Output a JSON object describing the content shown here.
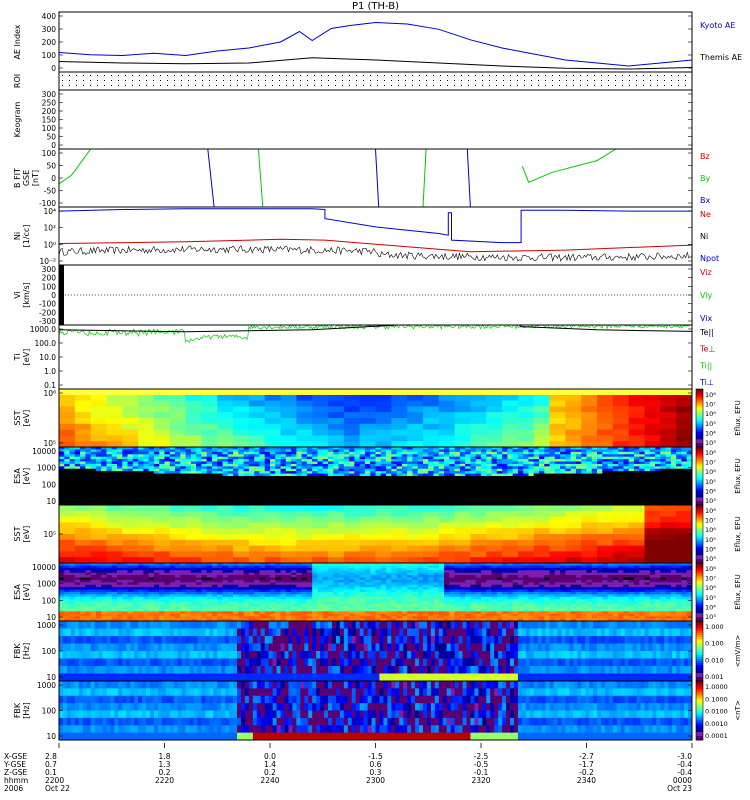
{
  "chart_data": {
    "type": "multi-panel-timeseries",
    "title": "P1 (TH-B)",
    "panels": [
      {
        "id": "ae",
        "ylabel": [
          "AE Index"
        ],
        "ylim": [
          0,
          400
        ],
        "yticks": [
          "400",
          "300",
          "200",
          "100",
          "0"
        ],
        "series": [
          {
            "name": "Kyoto AE",
            "color": "#0000cc",
            "x": [
              0,
              0.05,
              0.1,
              0.15,
              0.2,
              0.25,
              0.3,
              0.35,
              0.38,
              0.4,
              0.43,
              0.46,
              0.5,
              0.55,
              0.6,
              0.65,
              0.7,
              0.75,
              0.8,
              0.85,
              0.9,
              0.95,
              1.0
            ],
            "y": [
              130,
              115,
              110,
              125,
              110,
              140,
              160,
              200,
              270,
              210,
              290,
              310,
              330,
              320,
              285,
              215,
              160,
              120,
              80,
              60,
              40,
              60,
              80
            ]
          },
          {
            "name": "Themis AE",
            "color": "#000000",
            "x": [
              0,
              0.1,
              0.2,
              0.3,
              0.4,
              0.5,
              0.6,
              0.7,
              0.8,
              0.9,
              1.0
            ],
            "y": [
              70,
              60,
              55,
              60,
              95,
              80,
              60,
              40,
              25,
              20,
              30
            ]
          }
        ]
      },
      {
        "id": "roi",
        "ylabel": [
          "ROI"
        ],
        "ylim": [
          0,
          1
        ],
        "yticks": []
      },
      {
        "id": "keogram",
        "ylabel": [
          "Keogram"
        ],
        "ylim": [
          0,
          300
        ],
        "yticks": [
          "300",
          "250",
          "200",
          "150",
          "100",
          "50",
          "0"
        ]
      },
      {
        "id": "bfield",
        "ylabel": [
          "B FIT",
          "GSE",
          "[nT]"
        ],
        "ylim": [
          -100,
          100
        ],
        "yticks": [
          "100",
          "50",
          "0",
          "-50",
          "-100"
        ],
        "series": [
          {
            "name": "Bz",
            "color": "#cc0000"
          },
          {
            "name": "By",
            "color": "#00cc00"
          },
          {
            "name": "Bx",
            "color": "#0000cc"
          }
        ]
      },
      {
        "id": "density",
        "ylabel": [
          "Ni",
          "[1/cc]"
        ],
        "ylim": [
          -3,
          4
        ],
        "yticks": [
          "10⁴",
          "10²",
          "10⁰",
          "10⁻²"
        ],
        "series": [
          {
            "name": "Ne",
            "color": "#cc0000"
          },
          {
            "name": "Ni",
            "color": "#000000"
          },
          {
            "name": "Npot",
            "color": "#0000cc"
          }
        ]
      },
      {
        "id": "velocity",
        "ylabel": [
          "Vi",
          "[km/s]"
        ],
        "ylim": [
          -300,
          300
        ],
        "yticks": [
          "300",
          "200",
          "100",
          "0",
          "-100",
          "-200",
          "-300"
        ],
        "series": [
          {
            "name": "Viz",
            "color": "#cc0000"
          },
          {
            "name": "Viy",
            "color": "#00cc00"
          },
          {
            "name": "Vix",
            "color": "#0000cc"
          }
        ]
      },
      {
        "id": "temperature",
        "ylabel": [
          "Ti",
          "[eV]"
        ],
        "ylim": [
          0.1,
          1000
        ],
        "yticks": [
          "1000.0",
          "100.0",
          "10.0",
          "1.0",
          "0.1"
        ],
        "series": [
          {
            "name": "Te||",
            "color": "#000000"
          },
          {
            "name": "Te⊥",
            "color": "#cc0000"
          },
          {
            "name": "Ti||",
            "color": "#00cc00"
          },
          {
            "name": "Ti⊥",
            "color": "#0000cc"
          }
        ]
      },
      {
        "id": "sst_ion",
        "ylabel": [
          "SST",
          "[eV]"
        ],
        "yticks": [
          "10⁶",
          "10⁵"
        ]
      },
      {
        "id": "esa_ion",
        "ylabel": [
          "ESA",
          "[eV]"
        ],
        "yticks": [
          "10000",
          "1000",
          "100",
          "10"
        ]
      },
      {
        "id": "sst_e",
        "ylabel": [
          "SST",
          "[eV]"
        ],
        "yticks": [
          "10⁵"
        ]
      },
      {
        "id": "esa_e",
        "ylabel": [
          "ESA",
          "[eV]"
        ],
        "yticks": [
          "10000",
          "1000",
          "100",
          "10"
        ]
      },
      {
        "id": "fbk_e",
        "ylabel": [
          "FBK",
          "[Hz]"
        ],
        "yticks": [
          "1000",
          "100",
          "10"
        ]
      },
      {
        "id": "fbk_b",
        "ylabel": [
          "FBK",
          "[Hz]"
        ],
        "yticks": [
          "1000",
          "100",
          "10"
        ]
      }
    ],
    "colorbars": [
      {
        "labels": [
          "10⁸",
          "10⁷",
          "10⁶",
          "10⁵",
          "10⁴",
          "10³"
        ],
        "title": "Eflux, EFU"
      },
      {
        "labels": [
          "10⁸",
          "10⁷",
          "10⁶",
          "10⁵",
          "10⁴",
          "10³"
        ],
        "title": "Eflux, EFU"
      },
      {
        "labels": [
          "10⁸",
          "10⁷",
          "10⁶",
          "10⁵",
          "10⁴",
          "10³"
        ],
        "title": "Eflux, EFU"
      },
      {
        "labels": [
          "10⁸",
          "10⁷",
          "10⁶",
          "10⁵",
          "10⁴",
          "10³"
        ],
        "title": "Eflux, EFU"
      },
      {
        "labels": [
          "1.000",
          "0.100",
          "0.010",
          "0.001"
        ],
        "title": "<mV/m>"
      },
      {
        "labels": [
          "1.0000",
          "0.1000",
          "0.0100",
          "0.0010",
          "0.0001"
        ],
        "title": "<nT>"
      }
    ],
    "x_axis": {
      "row_labels": [
        "X-GSE",
        "Y-GSE",
        "Z-GSE",
        "hhmm",
        "2006"
      ],
      "ticks": [
        {
          "pos": 0,
          "vals": [
            "2.8",
            "0.7",
            "0.1",
            "2200",
            "Oct 22"
          ]
        },
        {
          "pos": 0.1667,
          "vals": [
            "1.8",
            "1.3",
            "0.2",
            "2220",
            ""
          ]
        },
        {
          "pos": 0.3333,
          "vals": [
            "0.0",
            "1.4",
            "0.2",
            "2240",
            ""
          ]
        },
        {
          "pos": 0.5,
          "vals": [
            "-1.5",
            "0.6",
            "0.3",
            "2300",
            ""
          ]
        },
        {
          "pos": 0.6667,
          "vals": [
            "-2.5",
            "-0.5",
            "-0.1",
            "2320",
            ""
          ]
        },
        {
          "pos": 0.8333,
          "vals": [
            "-2.7",
            "-1.7",
            "-0.2",
            "2340",
            ""
          ]
        },
        {
          "pos": 1,
          "vals": [
            "-3.0",
            "-0.4",
            "-0.4",
            "0000",
            "Oct 23"
          ]
        }
      ]
    }
  }
}
